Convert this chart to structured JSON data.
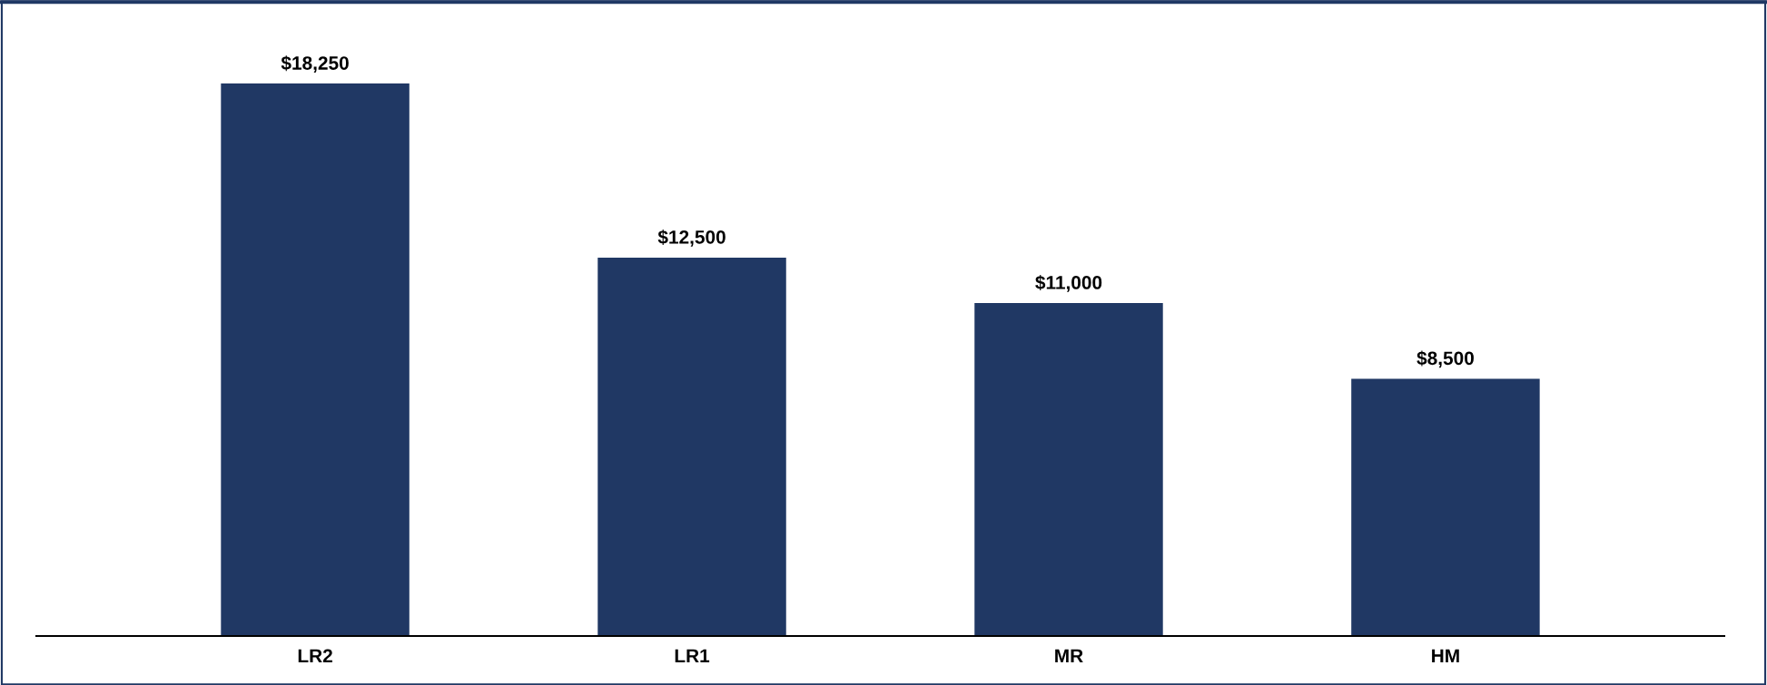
{
  "chart_data": {
    "type": "bar",
    "categories": [
      "LR2",
      "LR1",
      "MR",
      "HM"
    ],
    "values": [
      18250,
      12500,
      11000,
      8500
    ],
    "value_labels": [
      "$18,250",
      "$12,500",
      "$11,000",
      "$8,500"
    ],
    "color": "#203864",
    "grid": false,
    "legend": false
  }
}
